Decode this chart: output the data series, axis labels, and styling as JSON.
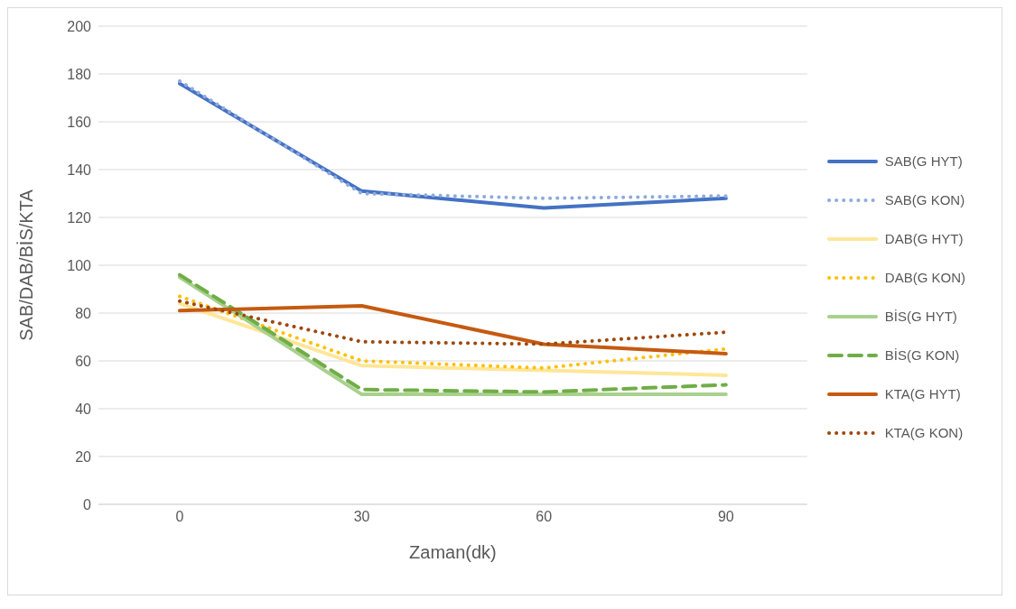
{
  "chart_data": {
    "type": "line",
    "xlabel": "Zaman(dk)",
    "ylabel": "SAB/DAB/BİS/KTA",
    "categories": [
      "0",
      "30",
      "60",
      "90"
    ],
    "ylim": [
      0,
      200
    ],
    "yticks": [
      0,
      20,
      40,
      60,
      80,
      100,
      120,
      140,
      160,
      180,
      200
    ],
    "grid": "y",
    "legend": "right",
    "marker": "none",
    "series": [
      {
        "name": "SAB(G HYT)",
        "color": "#4472c4",
        "line_style": "solid",
        "values": [
          176,
          131,
          124,
          128
        ]
      },
      {
        "name": "SAB(G KON)",
        "color": "#8faadc",
        "line_style": "dotted",
        "values": [
          177,
          130,
          128,
          129
        ]
      },
      {
        "name": "DAB(G HYT)",
        "color": "#ffe699",
        "line_style": "solid",
        "values": [
          84,
          58,
          56,
          54
        ]
      },
      {
        "name": "DAB(G KON)",
        "color": "#ffc000",
        "line_style": "dotted",
        "values": [
          87,
          60,
          57,
          65
        ]
      },
      {
        "name": "BİS(G HYT)",
        "color": "#a9d18e",
        "line_style": "solid",
        "values": [
          95,
          46,
          46,
          46
        ]
      },
      {
        "name": "BİS(G KON)",
        "color": "#70ad47",
        "line_style": "dashed",
        "values": [
          96,
          48,
          47,
          50
        ]
      },
      {
        "name": "KTA(G HYT)",
        "color": "#c55a11",
        "line_style": "solid",
        "values": [
          81,
          83,
          67,
          63
        ]
      },
      {
        "name": "KTA(G KON)",
        "color": "#9e480e",
        "line_style": "dotted",
        "values": [
          85,
          68,
          67,
          72
        ]
      }
    ]
  }
}
